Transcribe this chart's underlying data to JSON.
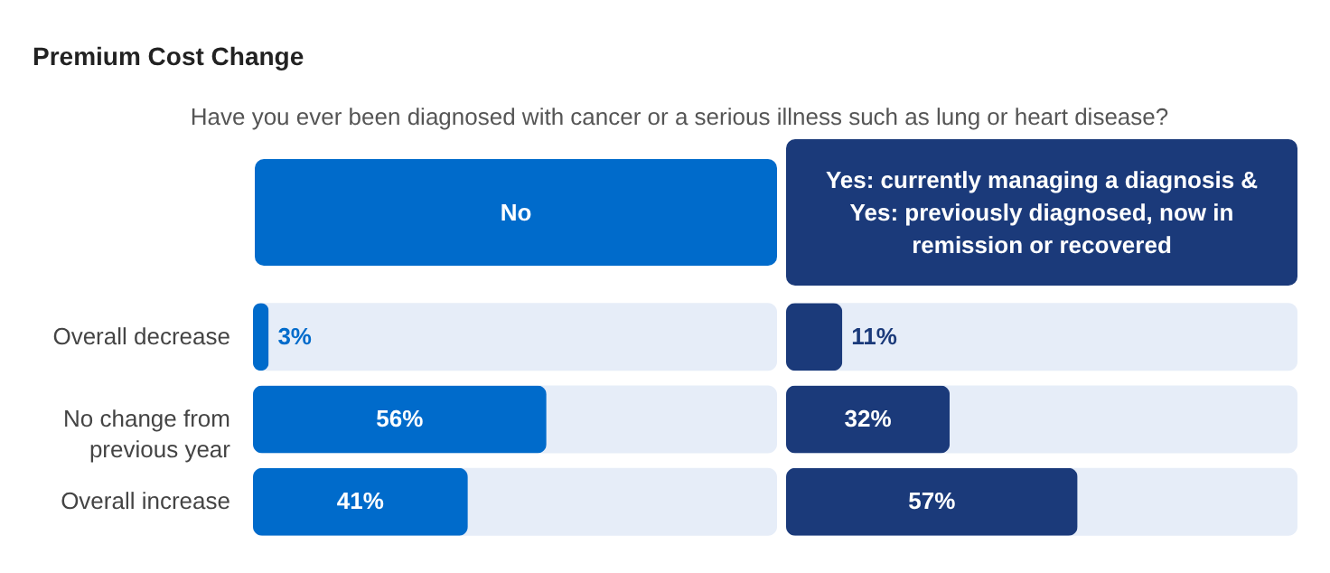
{
  "chart_data": [
    {
      "type": "bar",
      "orientation": "horizontal",
      "title": "Premium Cost Change",
      "subtitle": "Have you ever been diagnosed with cancer or a serious illness such as lung or heart disease?",
      "xlabel": "No",
      "categories": [
        "Overall decrease",
        "No change from previous year",
        "Overall increase"
      ],
      "xlim": [
        0,
        100
      ],
      "tick_labels": "y",
      "series": [
        {
          "color": "#006bcb",
          "values": [
            3,
            56,
            41
          ],
          "value_labels": [
            "3%",
            "56%",
            "41%"
          ]
        }
      ]
    },
    {
      "type": "bar",
      "orientation": "horizontal",
      "xlabel": "Yes: currently managing a diagnosis & Yes: previously diagnosed, now in remission or recovered",
      "categories": [
        null,
        null,
        null
      ],
      "xlim": [
        0,
        100
      ],
      "tick_labels": false,
      "series": [
        {
          "color": "#1b3a7a",
          "values": [
            11,
            32,
            57
          ],
          "value_labels": [
            "11%",
            "32%",
            "57%"
          ]
        }
      ]
    }
  ]
}
